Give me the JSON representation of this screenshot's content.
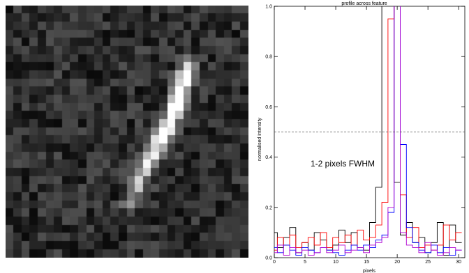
{
  "image_panel": {
    "label": "",
    "grid_cols": 30,
    "grid_rows": 31,
    "feature_track": [
      {
        "col": 22.0,
        "row": 7.5,
        "brightness": 0.85
      },
      {
        "col": 21.5,
        "row": 9.0,
        "brightness": 0.9
      },
      {
        "col": 21.0,
        "row": 10.5,
        "brightness": 0.92
      },
      {
        "col": 20.5,
        "row": 12.0,
        "brightness": 0.95
      },
      {
        "col": 20.0,
        "row": 13.5,
        "brightness": 0.98
      },
      {
        "col": 19.3,
        "row": 15.0,
        "brightness": 1.0
      },
      {
        "col": 18.5,
        "row": 16.5,
        "brightness": 0.96
      },
      {
        "col": 17.5,
        "row": 18.0,
        "brightness": 0.85
      },
      {
        "col": 17.0,
        "row": 19.5,
        "brightness": 0.72
      },
      {
        "col": 16.0,
        "row": 21.0,
        "brightness": 0.6
      },
      {
        "col": 15.5,
        "row": 22.5,
        "brightness": 0.5
      },
      {
        "col": 14.8,
        "row": 24.0,
        "brightness": 0.38
      }
    ]
  },
  "chart_data": {
    "type": "line",
    "title": "profile across feature",
    "xlabel": "pixels",
    "ylabel": "normalised intensity",
    "xlim": [
      0,
      31
    ],
    "ylim": [
      0,
      1.0
    ],
    "x_ticks": [
      0,
      5,
      10,
      15,
      20,
      25,
      30
    ],
    "y_ticks": [
      0.0,
      0.2,
      0.4,
      0.6,
      0.8,
      1.0
    ],
    "x_tick_labels": [
      "0",
      "5",
      "10",
      "15",
      "20",
      "25",
      "30"
    ],
    "y_tick_labels": [
      "0.0",
      "0.2",
      "0.4",
      "0.6",
      "0.8",
      "1.0"
    ],
    "reference_line": {
      "y": 0.5,
      "style": "dashed"
    },
    "annotation": "1-2 pixels FWHM",
    "series": [
      {
        "color": "#000000",
        "x": [
          0,
          1,
          2,
          3,
          4,
          5,
          6,
          7,
          8,
          9,
          10,
          11,
          12,
          13,
          14,
          15,
          16,
          17,
          18,
          19,
          20,
          21,
          22,
          23,
          24,
          25,
          26,
          27,
          28,
          29,
          30
        ],
        "values": [
          0.1,
          0.04,
          0.08,
          0.12,
          0.02,
          0.06,
          0.03,
          0.1,
          0.07,
          0.03,
          0.05,
          0.11,
          0.06,
          0.1,
          0.04,
          0.03,
          0.14,
          0.28,
          1.05,
          1.05,
          0.3,
          0.09,
          0.14,
          0.06,
          0.08,
          0.02,
          0.06,
          0.14,
          0.01,
          0.13,
          0.06
        ]
      },
      {
        "color": "#ff0000",
        "x": [
          0,
          1,
          2,
          3,
          4,
          5,
          6,
          7,
          8,
          9,
          10,
          11,
          12,
          13,
          14,
          15,
          16,
          17,
          18,
          19,
          20,
          21,
          22,
          23,
          24,
          25,
          26,
          27,
          28,
          29,
          30
        ],
        "values": [
          0.03,
          0.08,
          0.05,
          0.09,
          0.04,
          0.06,
          0.08,
          0.05,
          0.1,
          0.04,
          0.08,
          0.06,
          0.09,
          0.05,
          0.11,
          0.07,
          0.08,
          0.13,
          0.22,
          0.95,
          1.05,
          0.25,
          0.08,
          0.12,
          0.04,
          0.05,
          0.03,
          0.05,
          0.13,
          0.07,
          0.1
        ]
      },
      {
        "color": "#0000ff",
        "x": [
          0,
          1,
          2,
          3,
          4,
          5,
          6,
          7,
          8,
          9,
          10,
          11,
          12,
          13,
          14,
          15,
          16,
          17,
          18,
          19,
          20,
          21,
          22,
          23,
          24,
          25,
          26,
          27,
          28,
          29,
          30
        ],
        "values": [
          0.04,
          0.02,
          0.05,
          0.03,
          0.01,
          0.04,
          0.03,
          0.02,
          0.04,
          0.03,
          0.02,
          0.01,
          0.03,
          0.05,
          0.03,
          0.05,
          0.04,
          0.07,
          0.09,
          0.18,
          1.05,
          0.45,
          0.12,
          0.06,
          0.03,
          0.02,
          0.05,
          0.02,
          0.04,
          0.01,
          0.03
        ]
      },
      {
        "color": "#b000d0",
        "x": [
          0,
          1,
          2,
          3,
          4,
          5,
          6,
          7,
          8,
          9,
          10,
          11,
          12,
          13,
          14,
          15,
          16,
          17,
          18,
          19,
          20,
          21,
          22,
          23,
          24,
          25,
          26,
          27,
          28,
          29,
          30
        ],
        "values": [
          0.02,
          0.05,
          0.01,
          0.04,
          0.02,
          0.03,
          0.01,
          0.02,
          0.04,
          0.02,
          0.03,
          0.05,
          0.02,
          0.03,
          0.04,
          0.02,
          0.05,
          0.06,
          0.08,
          0.2,
          1.05,
          0.1,
          0.05,
          0.04,
          0.02,
          0.06,
          0.03,
          0.01,
          0.02,
          0.04,
          0.03
        ]
      }
    ]
  }
}
